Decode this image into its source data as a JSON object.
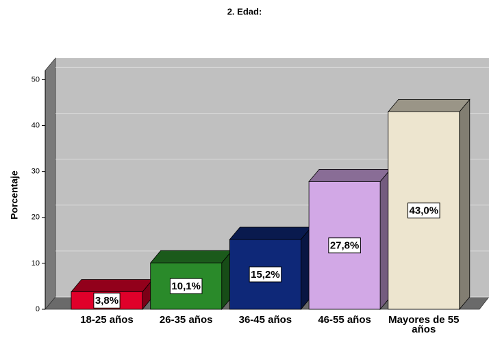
{
  "chart_data": {
    "type": "bar3d",
    "title": "2. Edad:",
    "ylabel": "Porcentaje",
    "categories": [
      "18-25 años",
      "26-35 años",
      "36-45 años",
      "46-55 años",
      "Mayores de 55 años"
    ],
    "values": [
      3.8,
      10.1,
      15.2,
      27.8,
      43.0
    ],
    "value_labels": [
      "3,8%",
      "10,1%",
      "15,2%",
      "27,8%",
      "43,0%"
    ],
    "colors": [
      "#e0002a",
      "#2a8a2a",
      "#0e2878",
      "#d2a8e6",
      "#ede5cf"
    ],
    "ylim": [
      0,
      52
    ],
    "yticks": [
      0,
      10,
      20,
      30,
      40,
      50
    ],
    "grid": true
  }
}
